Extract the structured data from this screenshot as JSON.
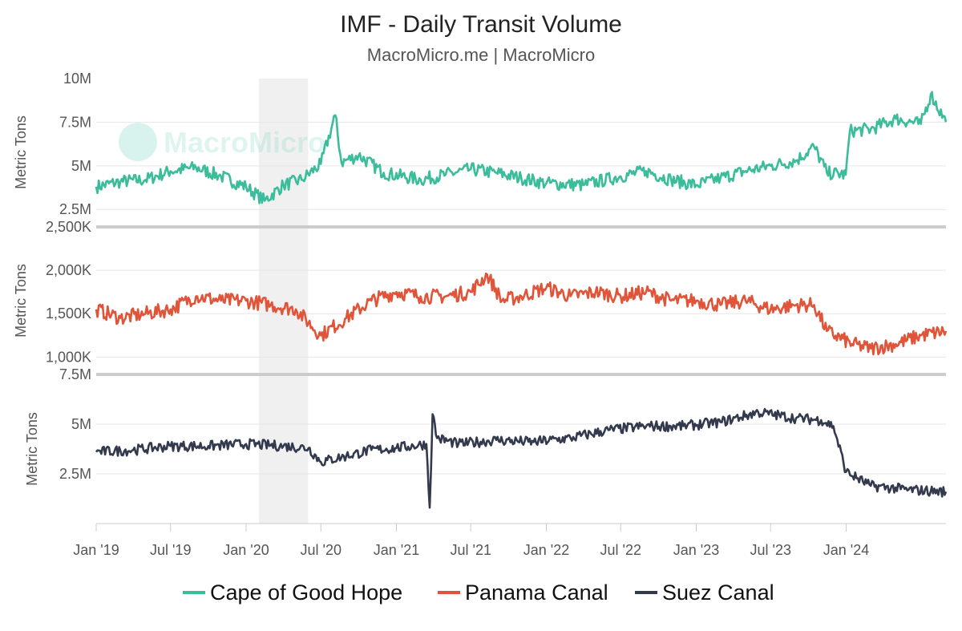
{
  "chart_data": {
    "type": "line",
    "title": "IMF - Daily Transit Volume",
    "subtitle": "MacroMicro.me | MacroMicro",
    "watermark": "MacroMicro",
    "x_range": [
      "2019-01-01",
      "2024-08-31"
    ],
    "x_ticks": [
      "Jan '19",
      "Jul '19",
      "Jan '20",
      "Jul '20",
      "Jan '21",
      "Jul '21",
      "Jan '22",
      "Jul '22",
      "Jan '23",
      "Jul '23",
      "Jan '24"
    ],
    "shaded_period": {
      "start": "2020-02-01",
      "end": "2020-05-31"
    },
    "panels": [
      {
        "series_name": "Cape of Good Hope",
        "color": "#3bbc9b",
        "ylabel": "Metric Tons",
        "ylim": [
          1500000,
          10000000
        ],
        "yticks": [
          2500000,
          5000000,
          7500000,
          10000000
        ],
        "ytick_labels": [
          "2.5M",
          "5M",
          "7.5M",
          "10M"
        ],
        "points": [
          [
            "2019-01-01",
            3800000
          ],
          [
            "2019-03-01",
            4100000
          ],
          [
            "2019-05-01",
            4200000
          ],
          [
            "2019-07-01",
            4700000
          ],
          [
            "2019-09-01",
            4900000
          ],
          [
            "2019-11-01",
            4400000
          ],
          [
            "2020-01-01",
            3800000
          ],
          [
            "2020-02-15",
            3000000
          ],
          [
            "2020-04-01",
            3900000
          ],
          [
            "2020-05-15",
            4200000
          ],
          [
            "2020-07-01",
            5100000
          ],
          [
            "2020-08-05",
            7900000
          ],
          [
            "2020-08-20",
            5200000
          ],
          [
            "2020-10-01",
            5600000
          ],
          [
            "2020-12-01",
            4600000
          ],
          [
            "2021-03-01",
            4200000
          ],
          [
            "2021-05-01",
            4500000
          ],
          [
            "2021-07-01",
            4800000
          ],
          [
            "2021-09-01",
            4600000
          ],
          [
            "2021-11-01",
            4300000
          ],
          [
            "2022-01-01",
            4000000
          ],
          [
            "2022-04-01",
            3900000
          ],
          [
            "2022-07-01",
            4400000
          ],
          [
            "2022-09-01",
            4700000
          ],
          [
            "2022-11-01",
            4200000
          ],
          [
            "2023-01-01",
            3900000
          ],
          [
            "2023-03-01",
            4300000
          ],
          [
            "2023-05-01",
            4700000
          ],
          [
            "2023-07-01",
            5000000
          ],
          [
            "2023-09-01",
            5300000
          ],
          [
            "2023-10-15",
            6100000
          ],
          [
            "2023-11-15",
            4600000
          ],
          [
            "2023-12-31",
            4500000
          ],
          [
            "2024-01-10",
            7000000
          ],
          [
            "2024-03-01",
            7100000
          ],
          [
            "2024-05-01",
            7700000
          ],
          [
            "2024-07-01",
            7400000
          ],
          [
            "2024-07-25",
            9100000
          ],
          [
            "2024-08-31",
            7500000
          ]
        ]
      },
      {
        "series_name": "Panama Canal",
        "color": "#e0553a",
        "ylabel": "Metric Tons",
        "ylim": [
          800000,
          2500000
        ],
        "yticks": [
          1000000,
          1500000,
          2000000,
          2500000
        ],
        "ytick_labels": [
          "1,000K",
          "1,500K",
          "2,000K",
          "2,500K"
        ],
        "points": [
          [
            "2019-01-01",
            1550000
          ],
          [
            "2019-03-01",
            1450000
          ],
          [
            "2019-05-01",
            1500000
          ],
          [
            "2019-07-01",
            1550000
          ],
          [
            "2019-09-01",
            1700000
          ],
          [
            "2019-11-01",
            1650000
          ],
          [
            "2020-01-01",
            1650000
          ],
          [
            "2020-03-01",
            1600000
          ],
          [
            "2020-05-01",
            1550000
          ],
          [
            "2020-07-01",
            1250000
          ],
          [
            "2020-09-01",
            1450000
          ],
          [
            "2020-11-01",
            1650000
          ],
          [
            "2021-01-01",
            1750000
          ],
          [
            "2021-03-01",
            1700000
          ],
          [
            "2021-05-01",
            1700000
          ],
          [
            "2021-07-01",
            1750000
          ],
          [
            "2021-08-10",
            1950000
          ],
          [
            "2021-09-15",
            1650000
          ],
          [
            "2021-11-01",
            1700000
          ],
          [
            "2022-01-01",
            1800000
          ],
          [
            "2022-03-01",
            1700000
          ],
          [
            "2022-05-01",
            1750000
          ],
          [
            "2022-07-01",
            1700000
          ],
          [
            "2022-09-01",
            1750000
          ],
          [
            "2022-11-01",
            1650000
          ],
          [
            "2023-01-01",
            1650000
          ],
          [
            "2023-03-01",
            1600000
          ],
          [
            "2023-05-01",
            1650000
          ],
          [
            "2023-07-01",
            1550000
          ],
          [
            "2023-09-01",
            1600000
          ],
          [
            "2023-10-15",
            1600000
          ],
          [
            "2023-11-15",
            1300000
          ],
          [
            "2024-01-15",
            1150000
          ],
          [
            "2024-03-01",
            1100000
          ],
          [
            "2024-05-01",
            1150000
          ],
          [
            "2024-07-01",
            1250000
          ],
          [
            "2024-08-31",
            1300000
          ]
        ]
      },
      {
        "series_name": "Suez Canal",
        "color": "#343a4e",
        "ylabel": "Metric Tons",
        "ylim": [
          0,
          7500000
        ],
        "yticks": [
          2500000,
          5000000,
          7500000
        ],
        "ytick_labels": [
          "2.5M",
          "5M",
          "7.5M"
        ],
        "points": [
          [
            "2019-01-01",
            3600000
          ],
          [
            "2019-04-01",
            3700000
          ],
          [
            "2019-07-01",
            3900000
          ],
          [
            "2019-10-01",
            3900000
          ],
          [
            "2020-01-01",
            4000000
          ],
          [
            "2020-04-01",
            3900000
          ],
          [
            "2020-06-01",
            3800000
          ],
          [
            "2020-07-01",
            3100000
          ],
          [
            "2020-09-01",
            3400000
          ],
          [
            "2020-11-01",
            3700000
          ],
          [
            "2021-01-01",
            3800000
          ],
          [
            "2021-03-15",
            4000000
          ],
          [
            "2021-03-23",
            800000
          ],
          [
            "2021-03-30",
            5500000
          ],
          [
            "2021-04-10",
            4300000
          ],
          [
            "2021-06-01",
            4000000
          ],
          [
            "2021-09-01",
            4200000
          ],
          [
            "2021-12-01",
            4100000
          ],
          [
            "2022-03-01",
            4300000
          ],
          [
            "2022-06-01",
            4700000
          ],
          [
            "2022-09-01",
            4900000
          ],
          [
            "2022-12-01",
            4900000
          ],
          [
            "2023-03-01",
            5100000
          ],
          [
            "2023-06-01",
            5600000
          ],
          [
            "2023-09-01",
            5300000
          ],
          [
            "2023-11-01",
            5200000
          ],
          [
            "2023-12-01",
            4900000
          ],
          [
            "2024-01-01",
            2600000
          ],
          [
            "2024-03-01",
            1900000
          ],
          [
            "2024-06-01",
            1700000
          ],
          [
            "2024-08-31",
            1600000
          ]
        ]
      }
    ],
    "legend": [
      "Cape of Good Hope",
      "Panama Canal",
      "Suez Canal"
    ]
  }
}
